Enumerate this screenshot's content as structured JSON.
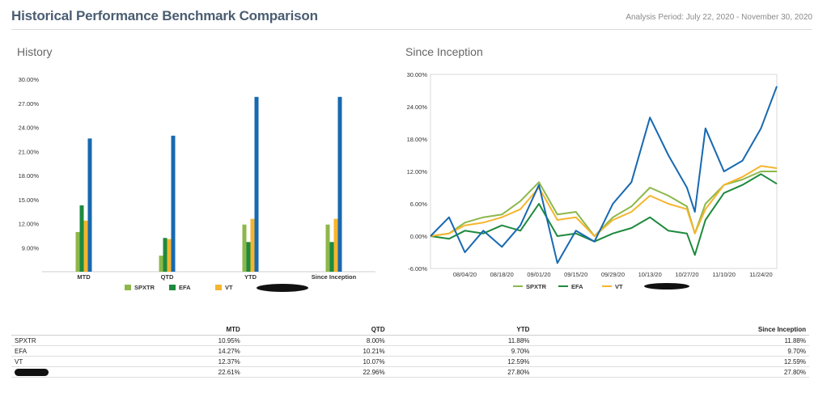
{
  "header": {
    "title": "Historical Performance Benchmark Comparison",
    "analysis_period": "Analysis Period: July 22, 2020 - November 30, 2020"
  },
  "sections": {
    "history_title": "History",
    "inception_title": "Since Inception"
  },
  "colors": {
    "SPXTR": "#8cb84a",
    "EFA": "#1e8a3e",
    "VT": "#f5b52e",
    "PORTFOLIO": "#1769b0"
  },
  "chart_data": [
    {
      "type": "bar",
      "categories": [
        "MTD",
        "QTD",
        "YTD",
        "Since Inception"
      ],
      "series": [
        {
          "name": "SPXTR",
          "values": [
            10.95,
            8.0,
            11.88,
            11.88
          ]
        },
        {
          "name": "EFA",
          "values": [
            14.27,
            10.21,
            9.7,
            9.7
          ]
        },
        {
          "name": "VT",
          "values": [
            12.37,
            10.07,
            12.59,
            12.59
          ]
        },
        {
          "name": "",
          "values": [
            22.61,
            22.96,
            27.8,
            27.8
          ]
        }
      ],
      "yticks": [
        "30.00%",
        "27.00%",
        "24.00%",
        "21.00%",
        "18.00%",
        "15.00%",
        "12.00%",
        "9.00%"
      ],
      "ylim": [
        6,
        30
      ],
      "legend": "bottom",
      "grid": false
    },
    {
      "type": "line",
      "xtick_labels": [
        "08/04/20",
        "08/18/20",
        "09/01/20",
        "09/15/20",
        "09/29/20",
        "10/13/20",
        "10/27/20",
        "11/10/20",
        "11/24/20"
      ],
      "yticks": [
        "30.00%",
        "24.00%",
        "18.00%",
        "12.00%",
        "6.00%",
        "0.00%",
        "-6.00%"
      ],
      "ylim": [
        -6,
        30
      ],
      "xlim": [
        "2020-07-22",
        "2020-11-30"
      ],
      "legend": "bottom",
      "grid": false,
      "series": [
        {
          "name": "SPXTR",
          "x": [
            "2020-07-22",
            "2020-07-29",
            "2020-08-04",
            "2020-08-11",
            "2020-08-18",
            "2020-08-25",
            "2020-09-01",
            "2020-09-08",
            "2020-09-15",
            "2020-09-22",
            "2020-09-29",
            "2020-10-06",
            "2020-10-13",
            "2020-10-20",
            "2020-10-27",
            "2020-10-30",
            "2020-11-03",
            "2020-11-10",
            "2020-11-17",
            "2020-11-24",
            "2020-11-30"
          ],
          "values": [
            0.0,
            0.5,
            2.5,
            3.5,
            4.0,
            6.5,
            10.0,
            4.0,
            4.5,
            0.0,
            3.5,
            5.5,
            9.0,
            7.5,
            5.5,
            0.5,
            6.0,
            9.5,
            10.5,
            12.0,
            12.0
          ]
        },
        {
          "name": "EFA",
          "x": [
            "2020-07-22",
            "2020-07-29",
            "2020-08-04",
            "2020-08-11",
            "2020-08-18",
            "2020-08-25",
            "2020-09-01",
            "2020-09-08",
            "2020-09-15",
            "2020-09-22",
            "2020-09-29",
            "2020-10-06",
            "2020-10-13",
            "2020-10-20",
            "2020-10-27",
            "2020-10-30",
            "2020-11-03",
            "2020-11-10",
            "2020-11-17",
            "2020-11-24",
            "2020-11-30"
          ],
          "values": [
            0.0,
            -0.5,
            1.0,
            0.5,
            2.0,
            1.0,
            6.0,
            0.0,
            0.5,
            -1.0,
            0.5,
            1.5,
            3.5,
            1.0,
            0.5,
            -3.5,
            3.0,
            8.0,
            9.5,
            11.5,
            9.7
          ]
        },
        {
          "name": "VT",
          "x": [
            "2020-07-22",
            "2020-07-29",
            "2020-08-04",
            "2020-08-11",
            "2020-08-18",
            "2020-08-25",
            "2020-09-01",
            "2020-09-08",
            "2020-09-15",
            "2020-09-22",
            "2020-09-29",
            "2020-10-06",
            "2020-10-13",
            "2020-10-20",
            "2020-10-27",
            "2020-10-30",
            "2020-11-03",
            "2020-11-10",
            "2020-11-17",
            "2020-11-24",
            "2020-11-30"
          ],
          "values": [
            0.0,
            0.5,
            2.0,
            2.5,
            3.5,
            5.0,
            9.0,
            3.0,
            3.5,
            0.0,
            3.0,
            4.5,
            7.5,
            6.0,
            5.0,
            0.5,
            5.0,
            9.5,
            11.0,
            13.0,
            12.6
          ]
        },
        {
          "name": "",
          "x": [
            "2020-07-22",
            "2020-07-29",
            "2020-08-04",
            "2020-08-11",
            "2020-08-18",
            "2020-08-25",
            "2020-09-01",
            "2020-09-08",
            "2020-09-15",
            "2020-09-22",
            "2020-09-29",
            "2020-10-06",
            "2020-10-13",
            "2020-10-20",
            "2020-10-27",
            "2020-10-30",
            "2020-11-03",
            "2020-11-10",
            "2020-11-17",
            "2020-11-24",
            "2020-11-30"
          ],
          "values": [
            0.0,
            3.5,
            -3.0,
            1.0,
            -2.0,
            2.0,
            9.5,
            -5.0,
            1.0,
            -1.0,
            6.0,
            10.0,
            22.0,
            15.0,
            9.0,
            4.5,
            20.0,
            12.0,
            14.0,
            20.0,
            27.8
          ]
        }
      ]
    }
  ],
  "table": {
    "headers": [
      "",
      "MTD",
      "QTD",
      "YTD",
      "Since Inception"
    ],
    "rows": [
      {
        "name": "SPXTR",
        "values": [
          "10.95%",
          "8.00%",
          "11.88%",
          "11.88%"
        ]
      },
      {
        "name": "EFA",
        "values": [
          "14.27%",
          "10.21%",
          "9.70%",
          "9.70%"
        ]
      },
      {
        "name": "VT",
        "values": [
          "12.37%",
          "10.07%",
          "12.59%",
          "12.59%"
        ]
      },
      {
        "name": "",
        "values": [
          "22.61%",
          "22.96%",
          "27.80%",
          "27.80%"
        ]
      }
    ]
  }
}
